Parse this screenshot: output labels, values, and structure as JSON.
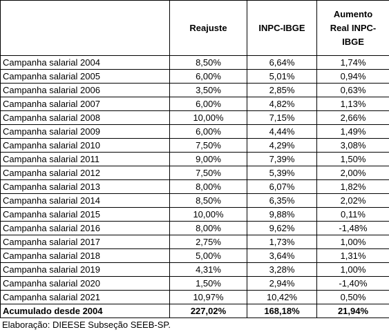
{
  "table": {
    "columns": [
      "Reajuste",
      "INPC-IBGE",
      "Aumento Real INPC-IBGE"
    ],
    "rows": [
      [
        "Campanha salarial 2004",
        "8,50%",
        "6,64%",
        "1,74%"
      ],
      [
        "Campanha salarial 2005",
        "6,00%",
        "5,01%",
        "0,94%"
      ],
      [
        "Campanha salarial 2006",
        "3,50%",
        "2,85%",
        "0,63%"
      ],
      [
        "Campanha salarial 2007",
        "6,00%",
        "4,82%",
        "1,13%"
      ],
      [
        "Campanha salarial 2008",
        "10,00%",
        "7,15%",
        "2,66%"
      ],
      [
        "Campanha salarial 2009",
        "6,00%",
        "4,44%",
        "1,49%"
      ],
      [
        "Campanha salarial 2010",
        "7,50%",
        "4,29%",
        "3,08%"
      ],
      [
        "Campanha salarial 2011",
        "9,00%",
        "7,39%",
        "1,50%"
      ],
      [
        "Campanha salarial 2012",
        "7,50%",
        "5,39%",
        "2,00%"
      ],
      [
        "Campanha salarial 2013",
        "8,00%",
        "6,07%",
        "1,82%"
      ],
      [
        "Campanha salarial 2014",
        "8,50%",
        "6,35%",
        "2,02%"
      ],
      [
        "Campanha salarial 2015",
        "10,00%",
        "9,88%",
        "0,11%"
      ],
      [
        "Campanha salarial 2016",
        "8,00%",
        "9,62%",
        "-1,48%"
      ],
      [
        "Campanha salarial 2017",
        "2,75%",
        "1,73%",
        "1,00%"
      ],
      [
        "Campanha salarial 2018",
        "5,00%",
        "3,64%",
        "1,31%"
      ],
      [
        "Campanha salarial 2019",
        "4,31%",
        "3,28%",
        "1,00%"
      ],
      [
        "Campanha salarial 2020",
        "1,50%",
        "2,94%",
        "-1,40%"
      ],
      [
        "Campanha salarial 2021",
        "10,97%",
        "10,42%",
        "0,50%"
      ]
    ],
    "total": [
      "Acumulado desde 2004",
      "227,02%",
      "168,18%",
      "21,94%"
    ]
  },
  "footer": "Elaboração: DIEESE Subseção SEEB-SP."
}
